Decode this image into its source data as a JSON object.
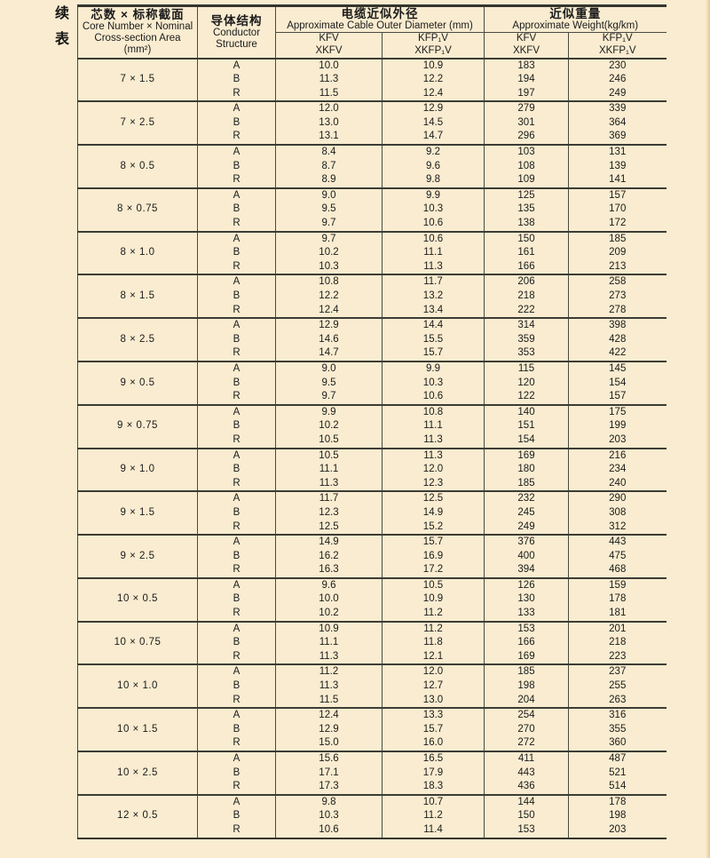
{
  "page": {
    "continued_label": "续表"
  },
  "table": {
    "header": {
      "core": {
        "zh": "芯数 × 标称截面",
        "en1": "Core Number × Nominal",
        "en2": "Cross-section Area",
        "en3": "(mm²)"
      },
      "conductor": {
        "zh": "导体结构",
        "en1": "Conductor",
        "en2": "Structure"
      },
      "diameter": {
        "zh": "电缆近似外径",
        "en": "Approximate Cable Outer Diameter (mm)"
      },
      "weight": {
        "zh": "近似重量",
        "en": "Approximate Weight(kg/km)"
      },
      "kfv": {
        "line1": "KFV",
        "line2": "XKFV"
      },
      "kfp1v": {
        "line1": "KFP₁V",
        "line2": "XKFP₁V"
      }
    },
    "columns": [
      "core_size",
      "conductor_structure",
      "diameter_kfv_xkfv",
      "diameter_kfp1v_xkfp1v",
      "weight_kfv_xkfv",
      "weight_kfp1v_xkfp1v"
    ],
    "groups": [
      {
        "size": "7 × 1.5",
        "rows": [
          [
            "A",
            "10.0",
            "10.9",
            "183",
            "230"
          ],
          [
            "B",
            "11.3",
            "12.2",
            "194",
            "246"
          ],
          [
            "R",
            "11.5",
            "12.4",
            "197",
            "249"
          ]
        ]
      },
      {
        "size": "7 × 2.5",
        "rows": [
          [
            "A",
            "12.0",
            "12.9",
            "279",
            "339"
          ],
          [
            "B",
            "13.0",
            "14.5",
            "301",
            "364"
          ],
          [
            "R",
            "13.1",
            "14.7",
            "296",
            "369"
          ]
        ]
      },
      {
        "size": "8 × 0.5",
        "rows": [
          [
            "A",
            "8.4",
            "9.2",
            "103",
            "131"
          ],
          [
            "B",
            "8.7",
            "9.6",
            "108",
            "139"
          ],
          [
            "R",
            "8.9",
            "9.8",
            "109",
            "141"
          ]
        ]
      },
      {
        "size": "8 × 0.75",
        "rows": [
          [
            "A",
            "9.0",
            "9.9",
            "125",
            "157"
          ],
          [
            "B",
            "9.5",
            "10.3",
            "135",
            "170"
          ],
          [
            "R",
            "9.7",
            "10.6",
            "138",
            "172"
          ]
        ]
      },
      {
        "size": "8 × 1.0",
        "rows": [
          [
            "A",
            "9.7",
            "10.6",
            "150",
            "185"
          ],
          [
            "B",
            "10.2",
            "11.1",
            "161",
            "209"
          ],
          [
            "R",
            "10.3",
            "11.3",
            "166",
            "213"
          ]
        ]
      },
      {
        "size": "8 × 1.5",
        "rows": [
          [
            "A",
            "10.8",
            "11.7",
            "206",
            "258"
          ],
          [
            "B",
            "12.2",
            "13.2",
            "218",
            "273"
          ],
          [
            "R",
            "12.4",
            "13.4",
            "222",
            "278"
          ]
        ]
      },
      {
        "size": "8 × 2.5",
        "rows": [
          [
            "A",
            "12.9",
            "14.4",
            "314",
            "398"
          ],
          [
            "B",
            "14.6",
            "15.5",
            "359",
            "428"
          ],
          [
            "R",
            "14.7",
            "15.7",
            "353",
            "422"
          ]
        ]
      },
      {
        "size": "9 × 0.5",
        "rows": [
          [
            "A",
            "9.0",
            "9.9",
            "115",
            "145"
          ],
          [
            "B",
            "9.5",
            "10.3",
            "120",
            "154"
          ],
          [
            "R",
            "9.7",
            "10.6",
            "122",
            "157"
          ]
        ]
      },
      {
        "size": "9 × 0.75",
        "rows": [
          [
            "A",
            "9.9",
            "10.8",
            "140",
            "175"
          ],
          [
            "B",
            "10.2",
            "11.1",
            "151",
            "199"
          ],
          [
            "R",
            "10.5",
            "11.3",
            "154",
            "203"
          ]
        ]
      },
      {
        "size": "9 × 1.0",
        "rows": [
          [
            "A",
            "10.5",
            "11.3",
            "169",
            "216"
          ],
          [
            "B",
            "11.1",
            "12.0",
            "180",
            "234"
          ],
          [
            "R",
            "11.3",
            "12.3",
            "185",
            "240"
          ]
        ]
      },
      {
        "size": "9 × 1.5",
        "rows": [
          [
            "A",
            "11.7",
            "12.5",
            "232",
            "290"
          ],
          [
            "B",
            "12.3",
            "14.9",
            "245",
            "308"
          ],
          [
            "R",
            "12.5",
            "15.2",
            "249",
            "312"
          ]
        ]
      },
      {
        "size": "9 × 2.5",
        "rows": [
          [
            "A",
            "14.9",
            "15.7",
            "376",
            "443"
          ],
          [
            "B",
            "16.2",
            "16.9",
            "400",
            "475"
          ],
          [
            "R",
            "16.3",
            "17.2",
            "394",
            "468"
          ]
        ]
      },
      {
        "size": "10 × 0.5",
        "rows": [
          [
            "A",
            "9.6",
            "10.5",
            "126",
            "159"
          ],
          [
            "B",
            "10.0",
            "10.9",
            "130",
            "178"
          ],
          [
            "R",
            "10.2",
            "11.2",
            "133",
            "181"
          ]
        ]
      },
      {
        "size": "10 × 0.75",
        "rows": [
          [
            "A",
            "10.9",
            "11.2",
            "153",
            "201"
          ],
          [
            "B",
            "11.1",
            "11.8",
            "166",
            "218"
          ],
          [
            "R",
            "11.3",
            "12.1",
            "169",
            "223"
          ]
        ]
      },
      {
        "size": "10 × 1.0",
        "rows": [
          [
            "A",
            "11.2",
            "12.0",
            "185",
            "237"
          ],
          [
            "B",
            "11.3",
            "12.7",
            "198",
            "255"
          ],
          [
            "R",
            "11.5",
            "13.0",
            "204",
            "263"
          ]
        ]
      },
      {
        "size": "10 × 1.5",
        "rows": [
          [
            "A",
            "12.4",
            "13.3",
            "254",
            "316"
          ],
          [
            "B",
            "12.9",
            "15.7",
            "270",
            "355"
          ],
          [
            "R",
            "15.0",
            "16.0",
            "272",
            "360"
          ]
        ]
      },
      {
        "size": "10 × 2.5",
        "rows": [
          [
            "A",
            "15.6",
            "16.5",
            "411",
            "487"
          ],
          [
            "B",
            "17.1",
            "17.9",
            "443",
            "521"
          ],
          [
            "R",
            "17.3",
            "18.3",
            "436",
            "514"
          ]
        ]
      },
      {
        "size": "12 × 0.5",
        "rows": [
          [
            "A",
            "9.8",
            "10.7",
            "144",
            "178"
          ],
          [
            "B",
            "10.3",
            "11.2",
            "150",
            "198"
          ],
          [
            "R",
            "10.6",
            "11.4",
            "153",
            "203"
          ]
        ]
      }
    ]
  }
}
